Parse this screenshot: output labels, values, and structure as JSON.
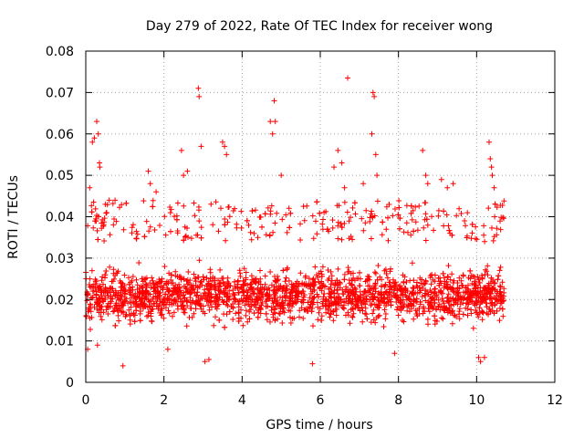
{
  "chart_data": {
    "type": "scatter",
    "title": "Day 279 of 2022, Rate Of TEC Index for receiver wong",
    "xlabel": "GPS time / hours",
    "ylabel": "ROTI / TECUs",
    "xlim": [
      0,
      12
    ],
    "ylim": [
      0,
      0.08
    ],
    "xticks": [
      "0",
      "2",
      "4",
      "6",
      "8",
      "10",
      "12"
    ],
    "yticks": [
      "0",
      "0.01",
      "0.02",
      "0.03",
      "0.04",
      "0.05",
      "0.06",
      "0.07",
      "0.08"
    ],
    "grid": true,
    "marker": "+",
    "color": "#ff0000",
    "data_x_range": [
      0,
      10.7
    ],
    "band": {
      "median": 0.021,
      "spread_low": 0.008,
      "spread_high": 0.038
    },
    "x": [
      0.1,
      0.17,
      0.22,
      0.28,
      0.32,
      0.35,
      0.36,
      0.5,
      0.6,
      0.75,
      1.6,
      1.65,
      1.8,
      2.45,
      2.5,
      2.6,
      2.88,
      2.9,
      2.95,
      3.5,
      3.55,
      3.6,
      4.72,
      4.78,
      4.82,
      4.85,
      5.0,
      6.35,
      6.45,
      6.55,
      6.62,
      6.7,
      7.1,
      7.32,
      7.35,
      7.38,
      7.42,
      7.45,
      8.62,
      8.7,
      8.75,
      9.1,
      9.25,
      9.4,
      10.32,
      10.35,
      10.38,
      10.4,
      10.45,
      0.05,
      0.3,
      0.95,
      2.1,
      3.05,
      3.15,
      5.8,
      7.9,
      10.05,
      10.1,
      10.2
    ],
    "y": [
      0.047,
      0.058,
      0.059,
      0.063,
      0.06,
      0.053,
      0.052,
      0.043,
      0.044,
      0.044,
      0.051,
      0.048,
      0.046,
      0.056,
      0.05,
      0.051,
      0.071,
      0.069,
      0.057,
      0.058,
      0.057,
      0.055,
      0.063,
      0.06,
      0.068,
      0.063,
      0.05,
      0.052,
      0.056,
      0.053,
      0.047,
      0.0735,
      0.048,
      0.06,
      0.07,
      0.069,
      0.055,
      0.05,
      0.056,
      0.05,
      0.048,
      0.049,
      0.047,
      0.048,
      0.058,
      0.054,
      0.052,
      0.05,
      0.047,
      0.008,
      0.009,
      0.004,
      0.008,
      0.005,
      0.0055,
      0.0045,
      0.007,
      0.006,
      0.005,
      0.006
    ],
    "series_color": "#ff0000"
  }
}
